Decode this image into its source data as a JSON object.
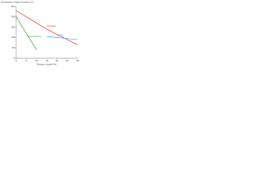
{
  "chart_data": {
    "type": "line",
    "y_label": "Temperature of glass transition (°C)",
    "x_label": "Moisture content (%)",
    "x": [
      0,
      5,
      10,
      15,
      20,
      25,
      30
    ],
    "series": [
      {
        "name": "Cellulose",
        "color": "#e8352e",
        "values": [
          230,
          200,
          170,
          140,
          115,
          90,
          65
        ]
      },
      {
        "name": "Lignin",
        "color": "#4aa3df",
        "values": [
          null,
          null,
          null,
          105,
          100,
          95,
          90
        ]
      },
      {
        "name": "Hemicellulose",
        "color": "#3aa63a",
        "values": [
          200,
          120,
          40,
          null,
          null,
          null,
          null
        ]
      }
    ],
    "xlim": [
      0,
      30
    ],
    "xticks": [
      0,
      5,
      10,
      15,
      20,
      25,
      30
    ],
    "ylim": [
      0,
      250
    ],
    "yticks": [
      0,
      50,
      100,
      150,
      200,
      250
    ]
  }
}
